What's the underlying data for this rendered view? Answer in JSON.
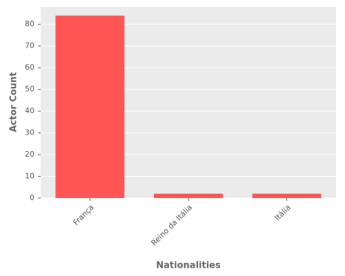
{
  "chart_data": {
    "type": "bar",
    "x_label": "Nationalities",
    "y_label": "Actor Count",
    "categories": [
      "França",
      "Reino da Itália",
      "Itália"
    ],
    "values": [
      84,
      2,
      2
    ],
    "color": "#ff5555",
    "ylim": [
      0,
      88
    ],
    "yticks": [
      0,
      10,
      20,
      30,
      40,
      50,
      60,
      70,
      80
    ],
    "grid": true
  }
}
